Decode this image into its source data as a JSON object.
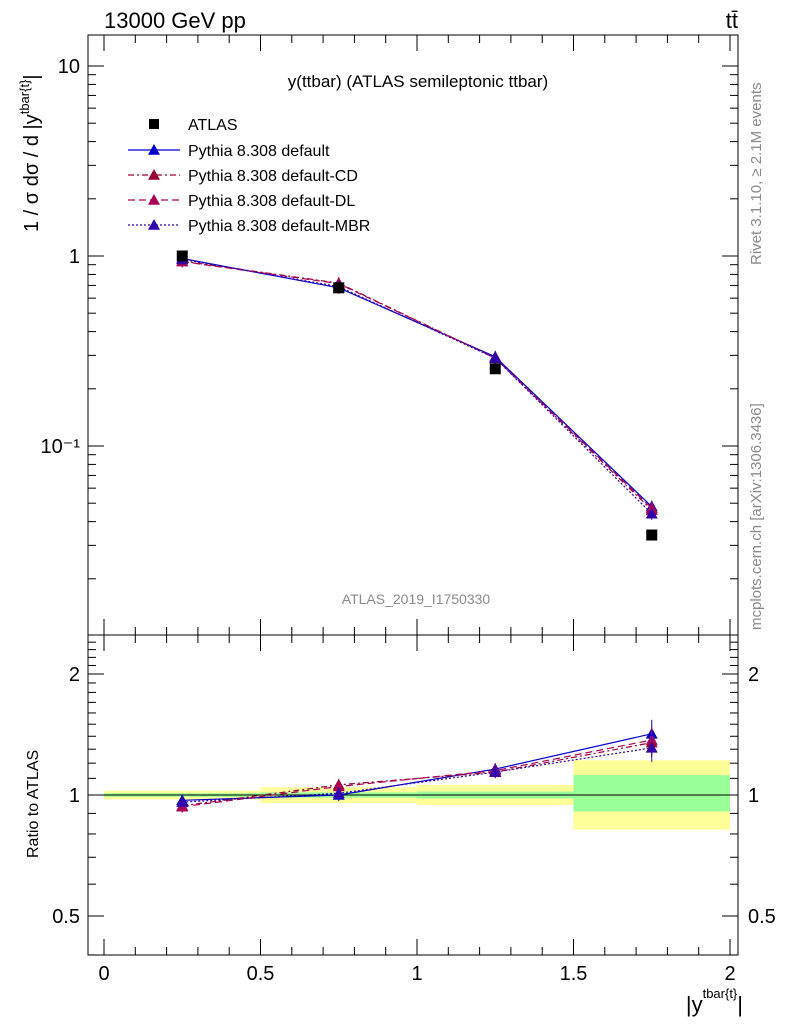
{
  "header": {
    "left": "13000 GeV pp",
    "right": "tt̄"
  },
  "side_text": {
    "rivet": "Rivet 3.1.10, ≥ 2.1M events",
    "source": "mcplots.cern.ch [arXiv:1306.3436]"
  },
  "watermark": "ATLAS_2019_I1750330",
  "chart_data": [
    {
      "type": "line",
      "title": "y(ttbar) (ATLAS semileptonic ttbar)",
      "ylabel": "1 / σ dσ / d |y^{tbar{t}}|",
      "xlabel": "|y^{tbar{t}}|",
      "yscale": "log",
      "xlim": [
        0,
        2
      ],
      "ylim": [
        0.015,
        15
      ],
      "x_ticks": [
        "0",
        "0.5",
        "1",
        "1.5",
        "2"
      ],
      "y_ticks": [
        "10",
        "1",
        "10⁻¹"
      ],
      "legend_position": "top-left",
      "x": [
        0.25,
        0.75,
        1.25,
        1.75
      ],
      "data": {
        "name": "ATLAS",
        "values": [
          1.0,
          0.68,
          0.255,
          0.034
        ],
        "color": "#000000"
      },
      "series": [
        {
          "name": "Pythia 8.308 default",
          "values": [
            0.97,
            0.68,
            0.295,
            0.048
          ],
          "color": "#0000cc",
          "dash": ""
        },
        {
          "name": "Pythia 8.308 default-CD",
          "values": [
            0.94,
            0.72,
            0.29,
            0.046
          ],
          "color": "#990033",
          "dash": "6,3,2,3"
        },
        {
          "name": "Pythia 8.308 default-DL",
          "values": [
            0.935,
            0.715,
            0.29,
            0.047
          ],
          "color": "#aa0055",
          "dash": "7,4"
        },
        {
          "name": "Pythia 8.308 default-MBR",
          "values": [
            0.96,
            0.69,
            0.29,
            0.044
          ],
          "color": "#3300aa",
          "dash": "2,2"
        }
      ]
    },
    {
      "type": "line",
      "ylabel": "Ratio to ATLAS",
      "xlim": [
        0,
        2
      ],
      "ylim": [
        0.4,
        2.4
      ],
      "y_ticks": [
        "2",
        "1",
        "0.5"
      ],
      "x": [
        0.25,
        0.75,
        1.25,
        1.75
      ],
      "bands": [
        {
          "x0": 0.0,
          "x1": 0.5,
          "yellow": [
            0.975,
            1.025
          ],
          "green": [
            0.99,
            1.01
          ]
        },
        {
          "x0": 0.5,
          "x1": 1.0,
          "yellow": [
            0.955,
            1.045
          ],
          "green": [
            0.985,
            1.015
          ]
        },
        {
          "x0": 1.0,
          "x1": 1.5,
          "yellow": [
            0.945,
            1.06
          ],
          "green": [
            0.98,
            1.02
          ]
        },
        {
          "x0": 1.5,
          "x1": 2.0,
          "yellow": [
            0.82,
            1.22
          ],
          "green": [
            0.91,
            1.12
          ]
        }
      ],
      "series": [
        {
          "name": "Pythia 8.308 default",
          "values": [
            0.97,
            1.0,
            1.16,
            1.42
          ]
        },
        {
          "name": "Pythia 8.308 default-CD",
          "values": [
            0.94,
            1.06,
            1.14,
            1.35
          ]
        },
        {
          "name": "Pythia 8.308 default-DL",
          "values": [
            0.935,
            1.05,
            1.15,
            1.37
          ]
        },
        {
          "name": "Pythia 8.308 default-MBR",
          "values": [
            0.96,
            1.01,
            1.14,
            1.31
          ]
        }
      ]
    }
  ]
}
